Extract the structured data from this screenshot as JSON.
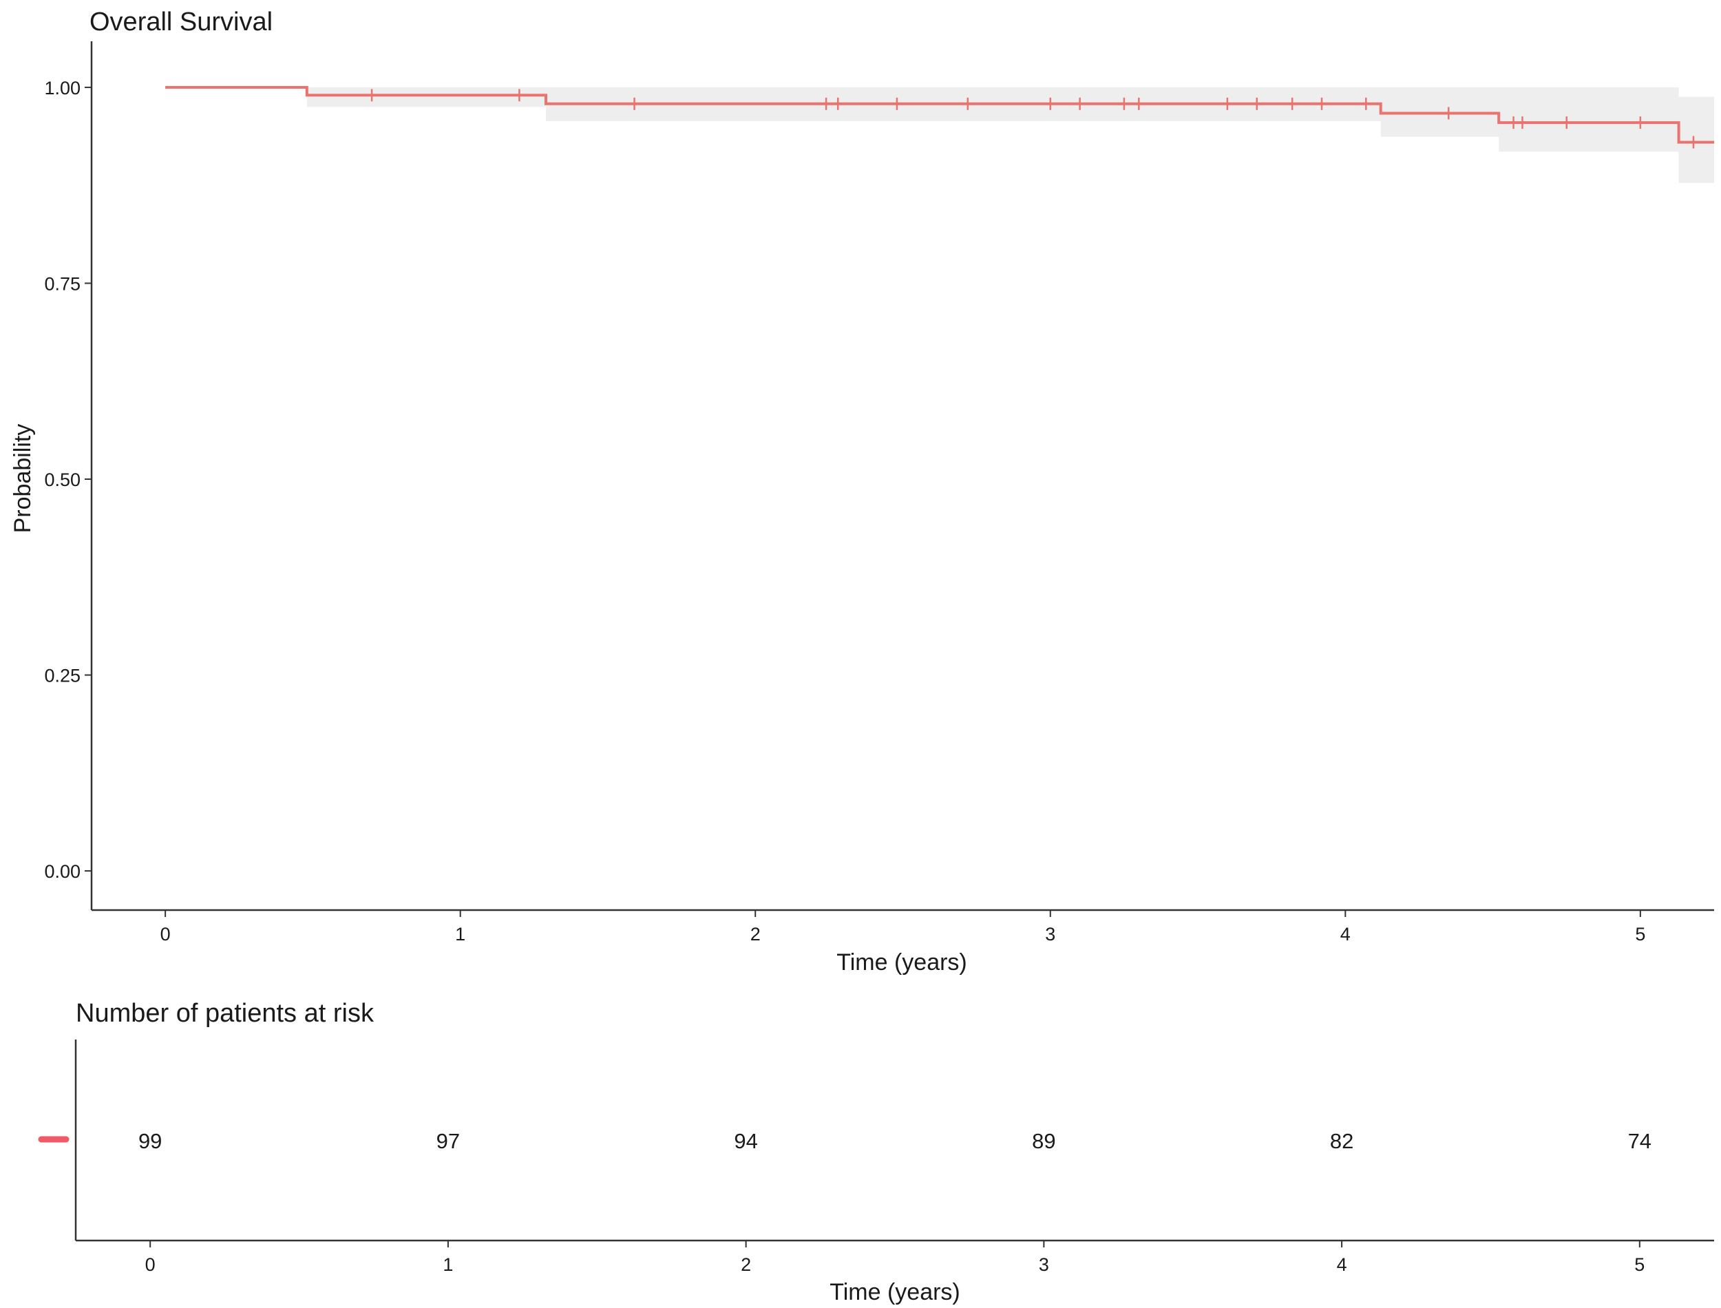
{
  "chart_data": [
    {
      "type": "line",
      "title": "Overall Survival",
      "xlabel": "Time (years)",
      "ylabel": "Probability",
      "xlim": [
        -0.25,
        5.25
      ],
      "ylim": [
        -0.05,
        1.05
      ],
      "x_ticks": [
        "0",
        "1",
        "2",
        "3",
        "4",
        "5"
      ],
      "y_ticks": [
        "0.00",
        "0.25",
        "0.50",
        "0.75",
        "1.00"
      ],
      "grid": false,
      "colors": {
        "line": "#e8736f",
        "band": "#eeeeee",
        "axis": "#333333"
      },
      "series": [
        {
          "steps": [
            {
              "x": 0.0,
              "y": 1.0
            },
            {
              "x": 0.48,
              "y": 0.99
            },
            {
              "x": 1.29,
              "y": 0.979
            },
            {
              "x": 4.12,
              "y": 0.967
            },
            {
              "x": 4.52,
              "y": 0.955
            },
            {
              "x": 5.13,
              "y": 0.93
            }
          ],
          "end_x": 5.25,
          "confidence_band": [
            {
              "x": 0.0,
              "lower": 1.0,
              "upper": 1.0
            },
            {
              "x": 0.48,
              "lower": 0.975,
              "upper": 1.0
            },
            {
              "x": 1.29,
              "lower": 0.957,
              "upper": 1.0
            },
            {
              "x": 4.12,
              "lower": 0.937,
              "upper": 1.0
            },
            {
              "x": 4.52,
              "lower": 0.918,
              "upper": 1.0
            },
            {
              "x": 5.13,
              "lower": 0.878,
              "upper": 0.988
            }
          ],
          "censor_times": [
            0.7,
            1.2,
            1.59,
            2.24,
            2.28,
            2.48,
            2.72,
            3.0,
            3.1,
            3.25,
            3.3,
            3.6,
            3.7,
            3.82,
            3.92,
            4.07,
            4.35,
            4.57,
            4.6,
            4.75,
            5.0,
            5.18
          ]
        }
      ]
    },
    {
      "type": "table",
      "title": "Number of patients at risk",
      "xlabel": "Time (years)",
      "x_ticks": [
        "0",
        "1",
        "2",
        "3",
        "4",
        "5"
      ],
      "x": [
        0,
        1,
        2,
        3,
        4,
        5
      ],
      "values": [
        "99",
        "97",
        "94",
        "89",
        "82",
        "74"
      ],
      "xlim": [
        -0.25,
        5.25
      ]
    }
  ]
}
